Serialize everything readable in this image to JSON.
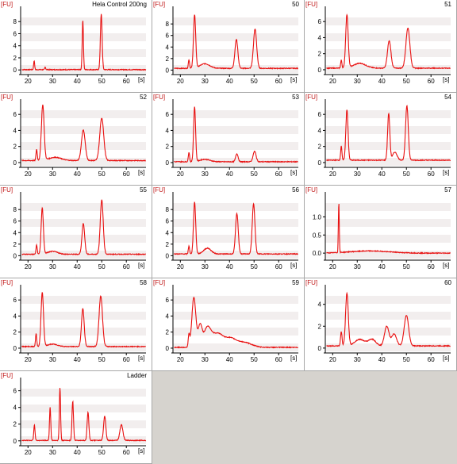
{
  "colors": {
    "trace": "#e81010",
    "axis": "#000000",
    "band_a": "#f2eeee",
    "band_b": "#ffffff",
    "bg": "#d6d3ce"
  },
  "chart_data": [
    {
      "type": "line",
      "title": "Hela Control 200ng",
      "ylabel": "[FU]",
      "xlabel": "[s]",
      "yticks": [
        0,
        2,
        4,
        6,
        8
      ],
      "ylim": [
        -0.5,
        10
      ],
      "xticks": [
        20,
        30,
        40,
        50,
        60
      ],
      "xlim": [
        17,
        68
      ],
      "peaks": [
        [
          22.5,
          1.5,
          0.2
        ],
        [
          27,
          0.4,
          0.2
        ],
        [
          42.3,
          8.2,
          0.25
        ],
        [
          49.8,
          9.2,
          0.35
        ]
      ],
      "baseline": 0.05
    },
    {
      "type": "line",
      "title": "50",
      "ylabel": "[FU]",
      "xlabel": "[s]",
      "yticks": [
        0,
        2,
        4,
        6,
        8
      ],
      "ylim": [
        -0.5,
        10.5
      ],
      "xticks": [
        20,
        30,
        40,
        50,
        60
      ],
      "xlim": [
        17,
        68
      ],
      "peaks": [
        [
          23.5,
          1.5,
          0.25
        ],
        [
          25.8,
          9.2,
          0.45
        ],
        [
          30,
          0.8,
          2.0
        ],
        [
          42.8,
          5.0,
          0.6
        ],
        [
          50.4,
          6.8,
          0.65
        ]
      ],
      "baseline": 0.3
    },
    {
      "type": "line",
      "title": "51",
      "ylabel": "[FU]",
      "xlabel": "[s]",
      "yticks": [
        0,
        2,
        4,
        6
      ],
      "ylim": [
        -0.4,
        7.5
      ],
      "xticks": [
        20,
        30,
        40,
        50,
        60
      ],
      "xlim": [
        17,
        68
      ],
      "peaks": [
        [
          23.5,
          1.0,
          0.25
        ],
        [
          25.8,
          6.6,
          0.5
        ],
        [
          31,
          0.6,
          2.5
        ],
        [
          43,
          3.4,
          0.7
        ],
        [
          50.6,
          5.0,
          0.8
        ]
      ],
      "baseline": 0.2
    },
    {
      "type": "line",
      "title": "52",
      "ylabel": "[FU]",
      "xlabel": "[s]",
      "yticks": [
        0,
        2,
        4,
        6
      ],
      "ylim": [
        -0.4,
        7.5
      ],
      "xticks": [
        20,
        30,
        40,
        50,
        60
      ],
      "xlim": [
        17,
        68
      ],
      "peaks": [
        [
          23.5,
          1.4,
          0.25
        ],
        [
          26,
          6.9,
          0.55
        ],
        [
          31,
          0.4,
          2.5
        ],
        [
          42.5,
          3.8,
          0.75
        ],
        [
          50,
          5.3,
          0.8
        ]
      ],
      "baseline": 0.25
    },
    {
      "type": "line",
      "title": "53",
      "ylabel": "[FU]",
      "xlabel": "[s]",
      "yticks": [
        0,
        2,
        4,
        6
      ],
      "ylim": [
        -0.4,
        7.5
      ],
      "xticks": [
        20,
        30,
        40,
        50,
        60
      ],
      "xlim": [
        17,
        68
      ],
      "peaks": [
        [
          23.5,
          1.2,
          0.25
        ],
        [
          25.8,
          6.8,
          0.4
        ],
        [
          30,
          0.3,
          2.0
        ],
        [
          43,
          1.0,
          0.5
        ],
        [
          50.2,
          1.3,
          0.6
        ]
      ],
      "baseline": 0.1
    },
    {
      "type": "line",
      "title": "54",
      "ylabel": "[FU]",
      "xlabel": "[s]",
      "yticks": [
        0,
        2,
        4,
        6
      ],
      "ylim": [
        -0.4,
        7.5
      ],
      "xticks": [
        20,
        30,
        40,
        50,
        60
      ],
      "xlim": [
        17,
        68
      ],
      "peaks": [
        [
          23.5,
          1.8,
          0.25
        ],
        [
          25.8,
          6.3,
          0.45
        ],
        [
          42.8,
          5.8,
          0.45
        ],
        [
          45.3,
          1.0,
          0.9
        ],
        [
          50.2,
          6.8,
          0.55
        ]
      ],
      "baseline": 0.3
    },
    {
      "type": "line",
      "title": "55",
      "ylabel": "[FU]",
      "xlabel": "[s]",
      "yticks": [
        0,
        2,
        4,
        6,
        8
      ],
      "ylim": [
        -0.5,
        10.5
      ],
      "xticks": [
        20,
        30,
        40,
        50,
        60
      ],
      "xlim": [
        17,
        68
      ],
      "peaks": [
        [
          23.5,
          1.6,
          0.25
        ],
        [
          25.8,
          8.0,
          0.45
        ],
        [
          30,
          0.5,
          2.0
        ],
        [
          42.5,
          5.3,
          0.55
        ],
        [
          50,
          9.4,
          0.6
        ]
      ],
      "baseline": 0.25
    },
    {
      "type": "line",
      "title": "56",
      "ylabel": "[FU]",
      "xlabel": "[s]",
      "yticks": [
        0,
        2,
        4,
        6,
        8
      ],
      "ylim": [
        -0.5,
        10.5
      ],
      "xticks": [
        20,
        30,
        40,
        50,
        60
      ],
      "xlim": [
        17,
        68
      ],
      "peaks": [
        [
          23.5,
          1.4,
          0.25
        ],
        [
          25.8,
          9.0,
          0.45
        ],
        [
          31,
          1.0,
          1.5
        ],
        [
          43,
          7.0,
          0.55
        ],
        [
          49.8,
          8.7,
          0.55
        ]
      ],
      "baseline": 0.3
    },
    {
      "type": "line",
      "title": "57",
      "ylabel": "[FU]",
      "xlabel": "[s]",
      "yticks": [
        0.0,
        0.5,
        1.0
      ],
      "ylim": [
        -0.15,
        1.6
      ],
      "xticks": [
        20,
        30,
        40,
        50,
        60
      ],
      "xlim": [
        17,
        68
      ],
      "peaks": [
        [
          22.5,
          1.38,
          0.18
        ],
        [
          35,
          0.06,
          8
        ]
      ],
      "baseline": 0.0
    },
    {
      "type": "line",
      "title": "58",
      "ylabel": "[FU]",
      "xlabel": "[s]",
      "yticks": [
        0,
        2,
        4,
        6
      ],
      "ylim": [
        -0.4,
        7.5
      ],
      "xticks": [
        20,
        30,
        40,
        50,
        60
      ],
      "xlim": [
        17,
        68
      ],
      "peaks": [
        [
          23.3,
          1.6,
          0.25
        ],
        [
          25.8,
          6.7,
          0.5
        ],
        [
          30,
          0.3,
          2.0
        ],
        [
          42.3,
          4.7,
          0.55
        ],
        [
          49.6,
          6.3,
          0.7
        ]
      ],
      "baseline": 0.2
    },
    {
      "type": "line",
      "title": "59",
      "ylabel": "[FU]",
      "xlabel": "[s]",
      "yticks": [
        0,
        2,
        4,
        6
      ],
      "ylim": [
        -0.4,
        7.5
      ],
      "xticks": [
        20,
        30,
        40,
        50,
        60
      ],
      "xlim": [
        17,
        68
      ],
      "peaks": [
        [
          23.5,
          1.5,
          0.3
        ],
        [
          25.5,
          6.2,
          0.8
        ],
        [
          28,
          2.6,
          0.8
        ],
        [
          31,
          2.4,
          1.5
        ],
        [
          35,
          1.6,
          2.0
        ],
        [
          40,
          1.1,
          2.5
        ],
        [
          46,
          0.6,
          3.0
        ]
      ],
      "baseline": 0.1
    },
    {
      "type": "line",
      "title": "60",
      "ylabel": "[FU]",
      "xlabel": "[s]",
      "yticks": [
        0,
        2,
        4
      ],
      "ylim": [
        -0.3,
        5.5
      ],
      "xticks": [
        20,
        30,
        40,
        50,
        60
      ],
      "xlim": [
        17,
        68
      ],
      "peaks": [
        [
          23.5,
          1.3,
          0.3
        ],
        [
          25.8,
          4.8,
          0.55
        ],
        [
          31,
          0.6,
          2.0
        ],
        [
          36,
          0.6,
          1.5
        ],
        [
          42,
          1.8,
          0.9
        ],
        [
          45,
          1.1,
          1.0
        ],
        [
          50,
          2.8,
          0.9
        ]
      ],
      "baseline": 0.2
    },
    {
      "type": "line",
      "title": "Ladder",
      "ylabel": "[FU]",
      "xlabel": "[s]",
      "yticks": [
        0,
        2,
        4,
        6
      ],
      "ylim": [
        -0.4,
        7.2
      ],
      "xticks": [
        20,
        30,
        40,
        50,
        60
      ],
      "xlim": [
        17,
        68
      ],
      "peaks": [
        [
          22.6,
          1.9,
          0.25
        ],
        [
          29,
          4.0,
          0.25
        ],
        [
          33,
          6.3,
          0.25
        ],
        [
          38.2,
          4.7,
          0.3
        ],
        [
          44.4,
          3.4,
          0.35
        ],
        [
          51.2,
          2.9,
          0.45
        ],
        [
          58,
          1.9,
          0.6
        ]
      ],
      "baseline": 0.05
    }
  ]
}
